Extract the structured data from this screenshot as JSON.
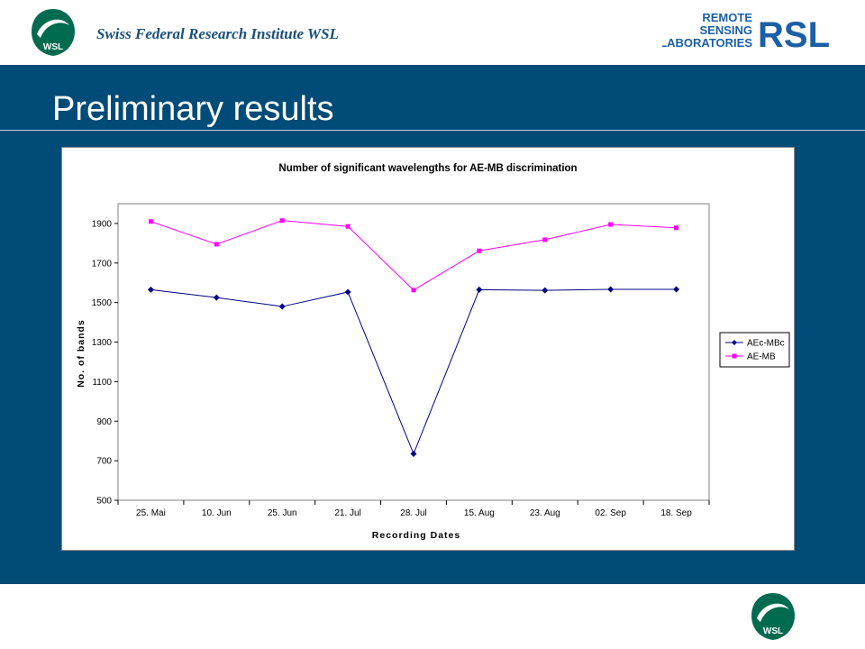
{
  "header": {
    "institute_name": "Swiss Federal  Research Institute WSL",
    "left_logo_text": "WSL",
    "right_logo": {
      "line1": "REMOTE",
      "line2": "SENSING",
      "line3": "LABORATORIES",
      "mark": "RSL"
    },
    "footer_logo_text": "WSL"
  },
  "slide": {
    "title": "Preliminary results"
  },
  "colors": {
    "banner": "#004b78",
    "series1": "#000080",
    "series2": "#ff00ff",
    "plot_bg": "#ffffff"
  },
  "chart_data": {
    "type": "line",
    "title": "Number of significant wavelengths for AE-MB discrimination",
    "xlabel": "Recording Dates",
    "ylabel": "No. of bands",
    "categories": [
      "25. Mai",
      "10. Jun",
      "25. Jun",
      "21. Jul",
      "28. Jul",
      "15. Aug",
      "23. Aug",
      "02. Sep",
      "18. Sep"
    ],
    "ylim": [
      500,
      2000
    ],
    "yticks": [
      500,
      700,
      900,
      1100,
      1300,
      1500,
      1700,
      1900
    ],
    "grid": false,
    "legend_position": "right",
    "series": [
      {
        "name": "AEc-MBc",
        "marker": "diamond",
        "values": [
          1565,
          1525,
          1480,
          1553,
          735,
          1565,
          1562,
          1567,
          1567
        ]
      },
      {
        "name": "AE-MB",
        "marker": "square",
        "values": [
          1910,
          1795,
          1915,
          1885,
          1563,
          1762,
          1818,
          1895,
          1878
        ]
      }
    ]
  }
}
